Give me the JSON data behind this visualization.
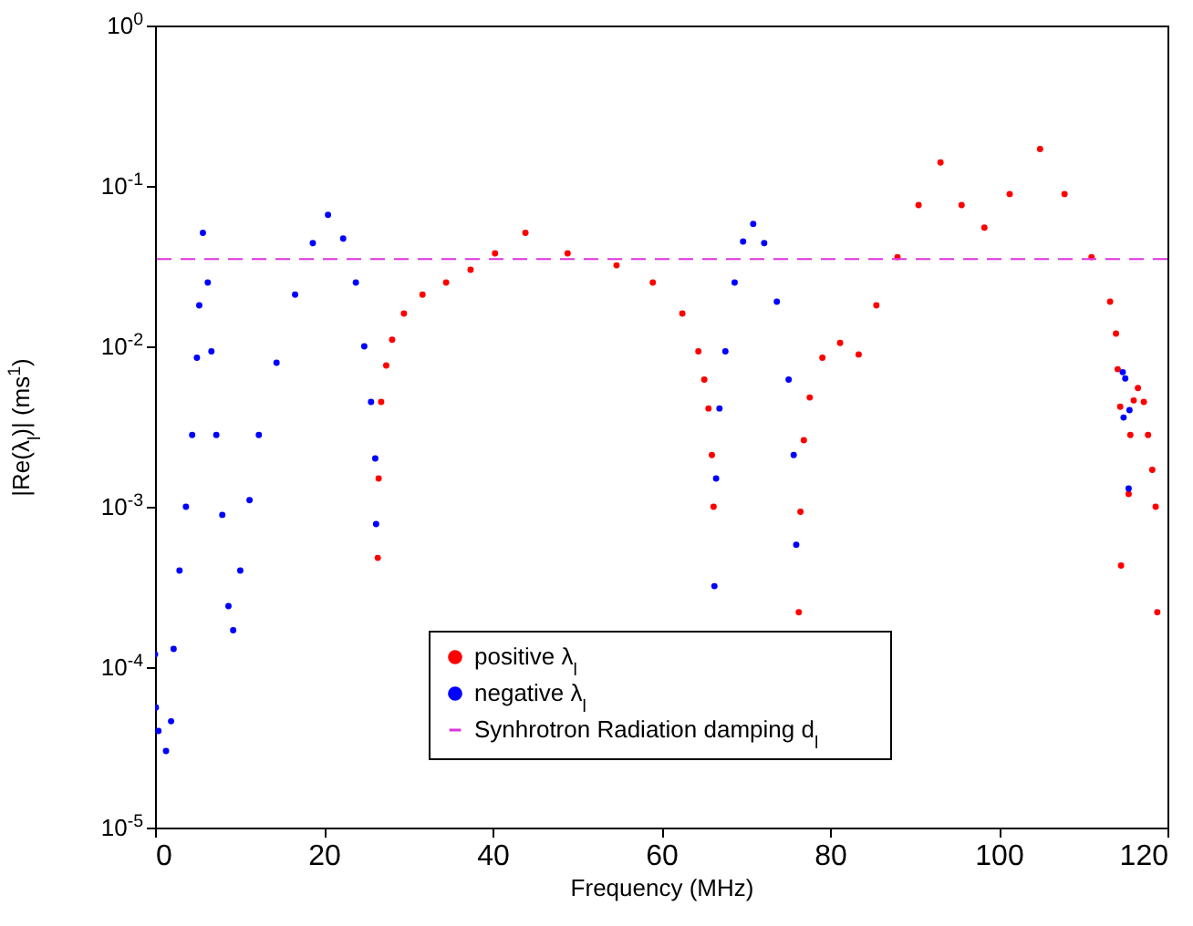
{
  "chart_data": {
    "type": "scatter",
    "xlabel": "Frequency (MHz)",
    "ylabel": "|Re(λ$_{l}$)| (ms$^{1}$)",
    "log": "y",
    "xlim": [
      0,
      120
    ],
    "xticks": [
      0,
      20,
      40,
      60,
      80,
      100,
      120
    ],
    "ylim": [
      1e-05,
      1
    ],
    "yticks": [
      {
        "value": 1e-05,
        "label": "10$^{-5}$"
      },
      {
        "value": 0.0001,
        "label": "10$^{-4}$"
      },
      {
        "value": 0.001,
        "label": "10$^{-3}$"
      },
      {
        "value": 0.01,
        "label": "10$^{-2}$"
      },
      {
        "value": 0.1,
        "label": "10$^{-1}$"
      },
      {
        "value": 1,
        "label": "10$^{0}$"
      }
    ],
    "grid": false,
    "legend": "bottom",
    "marker": "circle",
    "series": [
      {
        "name": "positive λ$_{l}$",
        "color": "#ff0000",
        "x": [
          26.4,
          26.5,
          26.8,
          27.4,
          28.1,
          29.5,
          31.7,
          34.5,
          37.4,
          40.3,
          43.9,
          48.9,
          54.7,
          59.0,
          62.5,
          64.4,
          65.1,
          65.6,
          66.0,
          66.2,
          76.3,
          76.5,
          76.9,
          77.6,
          79.1,
          81.2,
          83.4,
          85.5,
          88.0,
          90.5,
          93.1,
          95.6,
          98.3,
          101.3,
          104.9,
          107.8,
          111.0,
          113.2,
          113.9,
          114.1,
          114.4,
          114.5,
          115.4,
          115.6,
          116.0,
          116.5,
          117.2,
          117.7,
          118.2,
          118.6,
          118.8
        ],
        "values": [
          0.00048,
          0.0015,
          0.0045,
          0.0076,
          0.011,
          0.016,
          0.021,
          0.025,
          0.03,
          0.038,
          0.051,
          0.038,
          0.032,
          0.025,
          0.016,
          0.0093,
          0.0062,
          0.0041,
          0.0021,
          0.001,
          0.00022,
          0.00093,
          0.0026,
          0.0048,
          0.0085,
          0.0105,
          0.0089,
          0.018,
          0.036,
          0.076,
          0.14,
          0.076,
          0.055,
          0.089,
          0.17,
          0.089,
          0.036,
          0.019,
          0.012,
          0.0072,
          0.0042,
          0.00043,
          0.0012,
          0.0028,
          0.0046,
          0.0055,
          0.0045,
          0.0028,
          0.0017,
          0.001,
          0.00022
        ]
      },
      {
        "name": "negative λ$_{l}$",
        "color": "#0000ff",
        "x": [
          0,
          0.1,
          0.4,
          1.3,
          1.9,
          2.2,
          2.9,
          3.66,
          4.4,
          4.96,
          5.24,
          5.67,
          6.25,
          6.68,
          7.26,
          7.97,
          8.7,
          9.26,
          10.1,
          11.2,
          12.3,
          14.4,
          16.6,
          18.7,
          20.5,
          22.3,
          23.8,
          24.8,
          25.6,
          26.1,
          26.2,
          66.3,
          66.5,
          66.9,
          67.6,
          68.7,
          69.7,
          70.9,
          72.2,
          73.7,
          75.1,
          75.7,
          76.0,
          114.7,
          114.8,
          115.0,
          115.4,
          115.5
        ],
        "values": [
          0.00012,
          5.6e-05,
          4e-05,
          3e-05,
          4.6e-05,
          0.00013,
          0.0004,
          0.001,
          0.0028,
          0.0085,
          0.018,
          0.051,
          0.025,
          0.0093,
          0.0028,
          0.00089,
          0.00024,
          0.00017,
          0.0004,
          0.0011,
          0.0028,
          0.0079,
          0.021,
          0.044,
          0.066,
          0.047,
          0.025,
          0.01,
          0.0045,
          0.002,
          0.00078,
          0.00032,
          0.0015,
          0.0041,
          0.0093,
          0.025,
          0.045,
          0.058,
          0.044,
          0.019,
          0.0062,
          0.0021,
          0.00058,
          0.0069,
          0.0036,
          0.0063,
          0.0013,
          0.004
        ]
      }
    ],
    "ref_lines": [
      {
        "axis": "y",
        "value": 0.035,
        "label": "Synhrotron Radiation damping d$_{l}$",
        "color": "#dd33dd",
        "line_style": "dashed"
      }
    ]
  }
}
